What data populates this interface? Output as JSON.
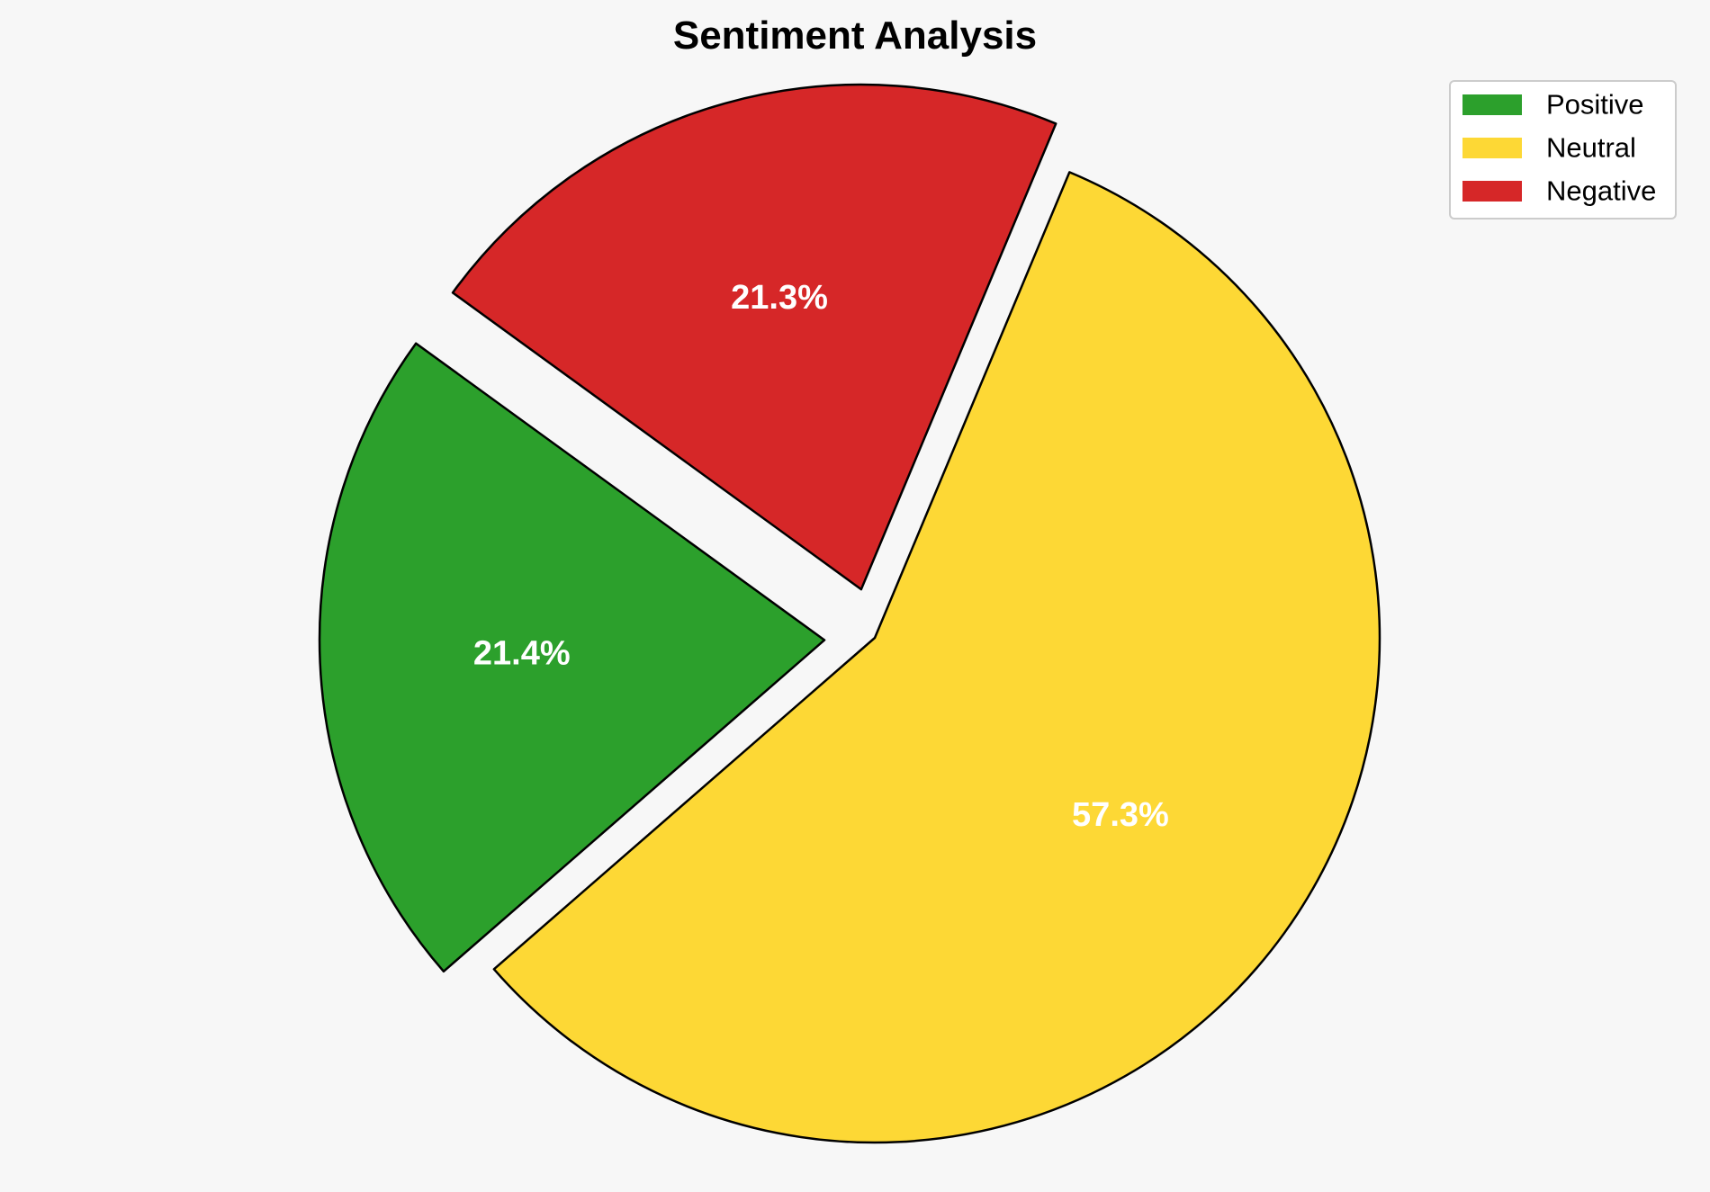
{
  "chart_data": {
    "type": "pie",
    "title": "Sentiment Analysis",
    "categories": [
      "Positive",
      "Neutral",
      "Negative"
    ],
    "values": [
      21.4,
      57.3,
      21.3
    ],
    "value_labels": [
      "21.4%",
      "57.3%",
      "21.3%"
    ],
    "colors": [
      "#2ca02c",
      "#fdd835",
      "#d62728"
    ],
    "exploded": [
      true,
      false,
      true
    ],
    "start_angle_deg": 144,
    "direction": "counterclockwise",
    "edge_color": "#000000",
    "legend": {
      "position": "top-right",
      "entries": [
        "Positive",
        "Neutral",
        "Negative"
      ]
    }
  }
}
